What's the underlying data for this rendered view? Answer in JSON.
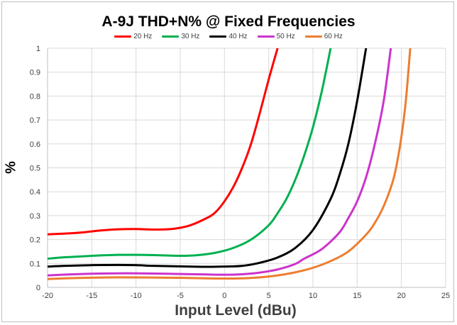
{
  "chart_data": {
    "type": "line",
    "title": "A-9J THD+N% @ Fixed Frequencies",
    "xlabel": "Input Level (dBu)",
    "ylabel": "%",
    "xlim": [
      -20,
      25
    ],
    "ylim": [
      0,
      1
    ],
    "xticks": [
      "-20",
      "-15",
      "-10",
      "-5",
      "0",
      "5",
      "10",
      "15",
      "20",
      "25"
    ],
    "yticks": [
      "0",
      "0.1",
      "0.2",
      "0.3",
      "0.4",
      "0.5",
      "0.6",
      "0.7",
      "0.8",
      "0.9",
      "1"
    ],
    "grid": true,
    "legend": "top-center",
    "series": [
      {
        "name": "20 Hz",
        "color": "#ff0000",
        "points": [
          [
            -20,
            0.222
          ],
          [
            -18,
            0.225
          ],
          [
            -16,
            0.23
          ],
          [
            -14,
            0.238
          ],
          [
            -12,
            0.243
          ],
          [
            -10,
            0.244
          ],
          [
            -8,
            0.242
          ],
          [
            -6,
            0.244
          ],
          [
            -4,
            0.258
          ],
          [
            -2,
            0.29
          ],
          [
            -1,
            0.315
          ],
          [
            0,
            0.36
          ],
          [
            1,
            0.42
          ],
          [
            2,
            0.5
          ],
          [
            3,
            0.6
          ],
          [
            4,
            0.73
          ],
          [
            5,
            0.87
          ],
          [
            6,
            1.0
          ]
        ]
      },
      {
        "name": "30 Hz",
        "color": "#00b050",
        "points": [
          [
            -20,
            0.12
          ],
          [
            -18,
            0.126
          ],
          [
            -15,
            0.132
          ],
          [
            -12,
            0.136
          ],
          [
            -10,
            0.136
          ],
          [
            -8,
            0.135
          ],
          [
            -5,
            0.132
          ],
          [
            -3,
            0.135
          ],
          [
            -1,
            0.145
          ],
          [
            1,
            0.165
          ],
          [
            3,
            0.2
          ],
          [
            5,
            0.26
          ],
          [
            6,
            0.31
          ],
          [
            7,
            0.37
          ],
          [
            8,
            0.45
          ],
          [
            9,
            0.55
          ],
          [
            10,
            0.67
          ],
          [
            11,
            0.82
          ],
          [
            12,
            1.0
          ]
        ]
      },
      {
        "name": "40 Hz",
        "color": "#000000",
        "points": [
          [
            -20,
            0.087
          ],
          [
            -18,
            0.09
          ],
          [
            -15,
            0.093
          ],
          [
            -12,
            0.094
          ],
          [
            -10,
            0.093
          ],
          [
            -8,
            0.09
          ],
          [
            -5,
            0.088
          ],
          [
            -2,
            0.086
          ],
          [
            0,
            0.087
          ],
          [
            2,
            0.09
          ],
          [
            4,
            0.103
          ],
          [
            6,
            0.125
          ],
          [
            8,
            0.165
          ],
          [
            10,
            0.24
          ],
          [
            12,
            0.37
          ],
          [
            13,
            0.47
          ],
          [
            14,
            0.6
          ],
          [
            15,
            0.78
          ],
          [
            16,
            1.0
          ]
        ]
      },
      {
        "name": "50 Hz",
        "color": "#cc33cc",
        "points": [
          [
            -20,
            0.05
          ],
          [
            -17,
            0.055
          ],
          [
            -14,
            0.058
          ],
          [
            -11,
            0.059
          ],
          [
            -8,
            0.058
          ],
          [
            -5,
            0.056
          ],
          [
            -2,
            0.054
          ],
          [
            0,
            0.053
          ],
          [
            2,
            0.055
          ],
          [
            4,
            0.062
          ],
          [
            6,
            0.075
          ],
          [
            8,
            0.098
          ],
          [
            9,
            0.12
          ],
          [
            11,
            0.16
          ],
          [
            13,
            0.23
          ],
          [
            14,
            0.29
          ],
          [
            15,
            0.36
          ],
          [
            16,
            0.46
          ],
          [
            17,
            0.6
          ],
          [
            18,
            0.78
          ],
          [
            18.8,
            1.0
          ]
        ]
      },
      {
        "name": "60 Hz",
        "color": "#ed7d31",
        "points": [
          [
            -20,
            0.035
          ],
          [
            -17,
            0.039
          ],
          [
            -14,
            0.041
          ],
          [
            -11,
            0.042
          ],
          [
            -8,
            0.041
          ],
          [
            -5,
            0.04
          ],
          [
            -2,
            0.038
          ],
          [
            0,
            0.037
          ],
          [
            2,
            0.038
          ],
          [
            4,
            0.042
          ],
          [
            6,
            0.05
          ],
          [
            8,
            0.063
          ],
          [
            10,
            0.082
          ],
          [
            12,
            0.11
          ],
          [
            14,
            0.15
          ],
          [
            16,
            0.22
          ],
          [
            17,
            0.27
          ],
          [
            18,
            0.34
          ],
          [
            19,
            0.44
          ],
          [
            19.5,
            0.52
          ],
          [
            20,
            0.63
          ],
          [
            20.5,
            0.78
          ],
          [
            21,
            1.0
          ]
        ]
      }
    ]
  }
}
